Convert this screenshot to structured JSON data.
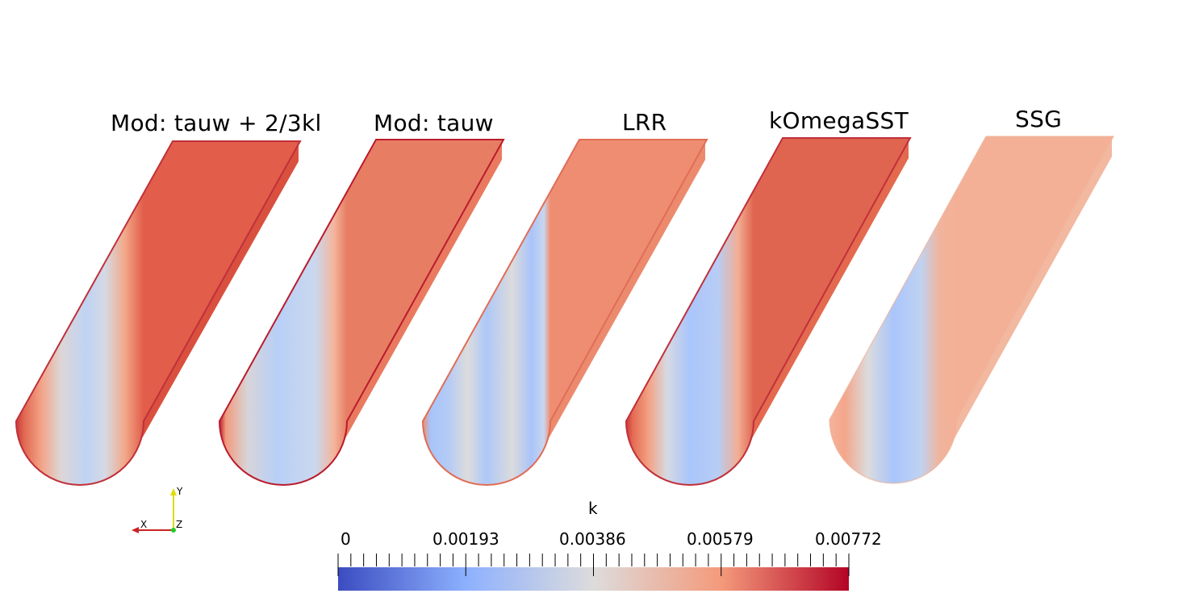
{
  "panels": [
    {
      "title": "Mod: tauw + 2/3kl"
    },
    {
      "title": "Mod: tauw"
    },
    {
      "title": "LRR"
    },
    {
      "title": "kOmegaSST"
    },
    {
      "title": "SSG"
    }
  ],
  "axes_triad": {
    "x_label": "X",
    "y_label": "Y",
    "z_label": "Z",
    "x_color": "#cc2222",
    "y_color": "#dddd00",
    "z_color": "#22cc22"
  },
  "colorbar": {
    "title": "k",
    "tick_labels": [
      "0",
      "0.00193",
      "0.00386",
      "0.00579",
      "0.00772"
    ],
    "range": [
      0,
      0.00772
    ],
    "colors": [
      "#3b4cc0",
      "#8db0fe",
      "#dddcdc",
      "#f49a7b",
      "#b40426"
    ]
  }
}
